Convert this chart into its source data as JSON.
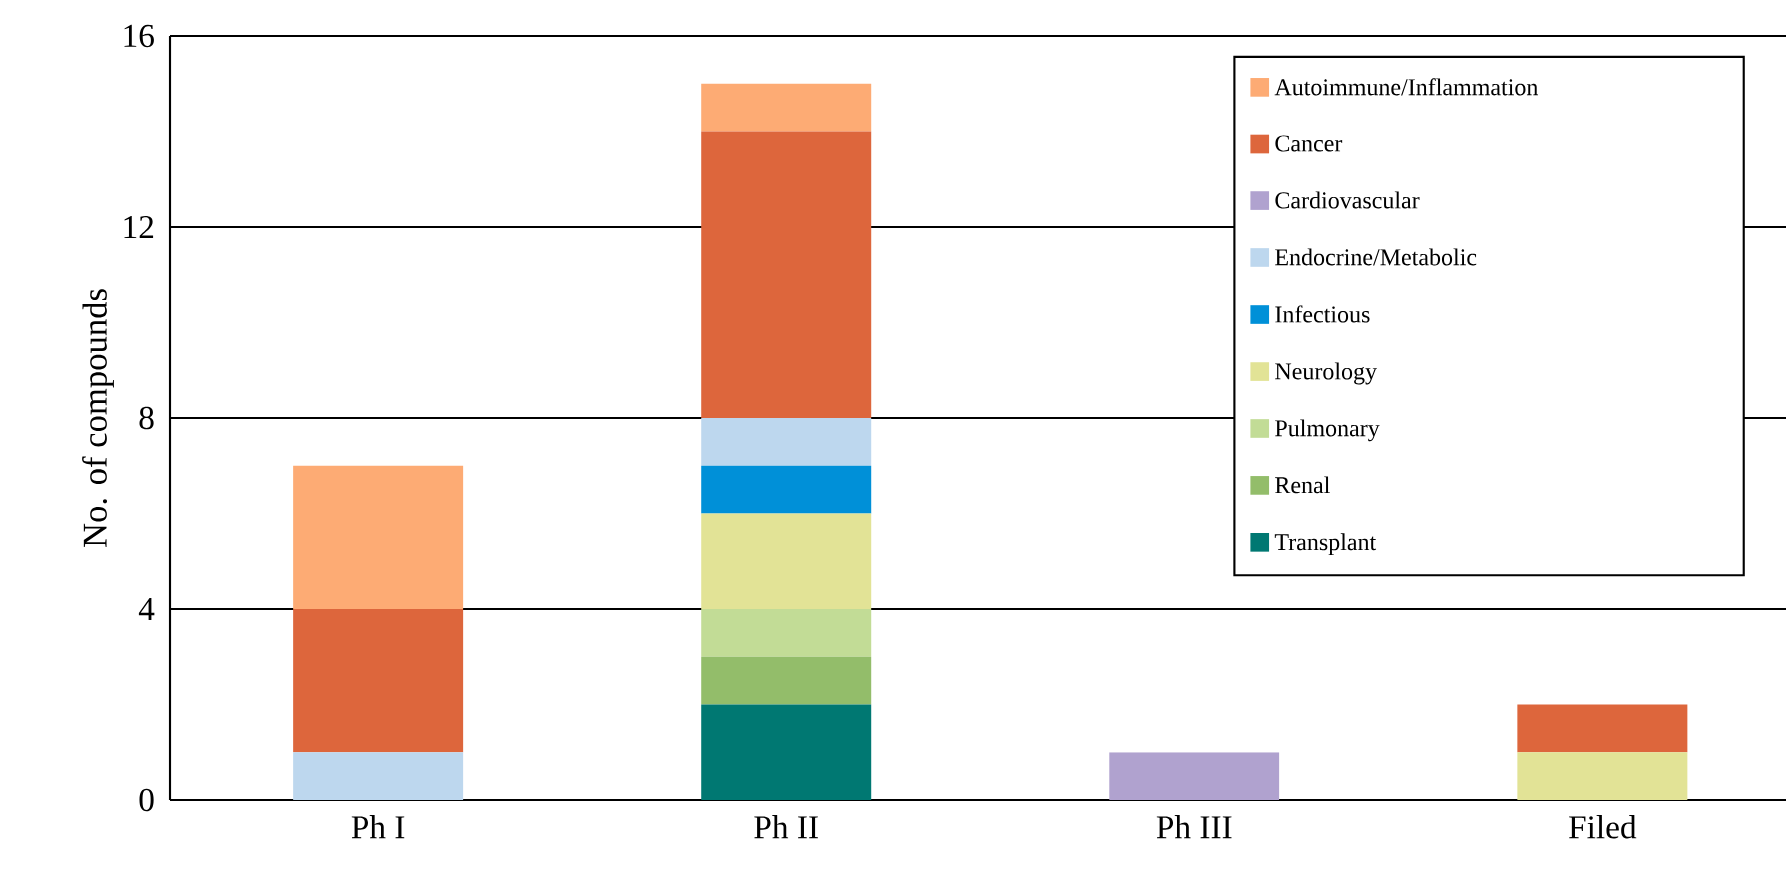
{
  "chart_data": {
    "type": "bar",
    "stacked": true,
    "ylabel": "No. of compounds",
    "categories": [
      "Ph I",
      "Ph II",
      "Ph III",
      "Filed"
    ],
    "series": [
      {
        "name": "Transplant",
        "color": "#007872",
        "values": [
          0,
          2,
          0,
          0
        ]
      },
      {
        "name": "Renal",
        "color": "#93bd6a",
        "values": [
          0,
          1,
          0,
          0
        ]
      },
      {
        "name": "Pulmonary",
        "color": "#c2dc96",
        "values": [
          0,
          1,
          0,
          0
        ]
      },
      {
        "name": "Neurology",
        "color": "#e2e396",
        "values": [
          0,
          2,
          0,
          1
        ]
      },
      {
        "name": "Infectious",
        "color": "#0090d8",
        "values": [
          0,
          1,
          0,
          0
        ]
      },
      {
        "name": "Endocrine/Metabolic",
        "color": "#bdd7ee",
        "values": [
          1,
          1,
          0,
          0
        ]
      },
      {
        "name": "Cardiovascular",
        "color": "#b0a2cf",
        "values": [
          0,
          0,
          1,
          0
        ]
      },
      {
        "name": "Cancer",
        "color": "#dd663c",
        "values": [
          3,
          6,
          0,
          1
        ]
      },
      {
        "name": "Autoimmune/Inflammation",
        "color": "#fdab74",
        "values": [
          3,
          1,
          0,
          0
        ]
      }
    ],
    "ylim": [
      0,
      16
    ],
    "yticks": [
      0,
      4,
      8,
      12,
      16
    ],
    "grid": "y",
    "legend": "top right"
  }
}
